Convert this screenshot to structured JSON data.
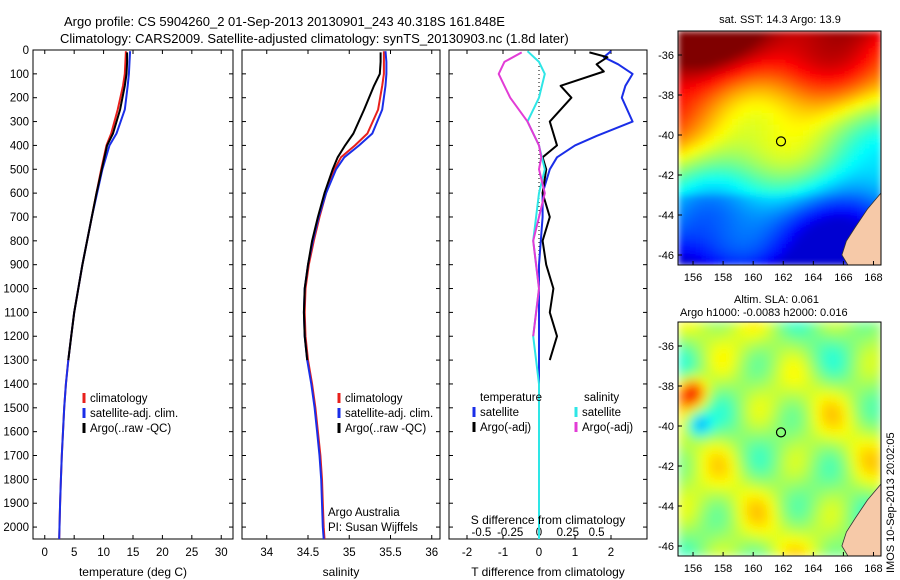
{
  "header": {
    "line1": "Argo profile: CS 5904260_2 01-Sep-2013 20130901_243 40.318S 161.848E",
    "line2": "Climatology: CARS2009. Satellite-adjusted climatology: synTS_20130903.nc (1.8d later)"
  },
  "side_label": "IMOS 10-Sep-2013 20:02:05",
  "colors": {
    "climatology": "#e8201c",
    "satellite": "#1a2ee8",
    "argo": "#000000",
    "satellite_salinity": "#2ee6e6",
    "argo_salinity": "#e23cd6",
    "land": "#f6c9a8"
  },
  "depth_axis": {
    "range": [
      0,
      2050
    ],
    "ticks": [
      0,
      100,
      200,
      300,
      400,
      500,
      600,
      700,
      800,
      900,
      1000,
      1100,
      1200,
      1300,
      1400,
      1500,
      1600,
      1700,
      1800,
      1900,
      2000
    ]
  },
  "chart_data": [
    {
      "type": "line",
      "id": "temperature-profile",
      "xlabel": "temperature (deg C)",
      "xlim": [
        -2,
        32
      ],
      "xticks": [
        0,
        5,
        10,
        15,
        20,
        25,
        30
      ],
      "ylim": [
        0,
        2050
      ],
      "y_inverted": true,
      "legend": {
        "placement": "lower-left",
        "entries": [
          "climatology",
          "satellite-adj. clim.",
          "Argo(..raw -QC)"
        ]
      },
      "series": [
        {
          "name": "climatology",
          "color": "#e8201c",
          "points": [
            [
              13.8,
              5
            ],
            [
              13.7,
              50
            ],
            [
              13.6,
              100
            ],
            [
              13.3,
              150
            ],
            [
              12.4,
              250
            ],
            [
              11.3,
              350
            ],
            [
              10.5,
              400
            ],
            [
              9.6,
              500
            ],
            [
              8.8,
              600
            ],
            [
              8.0,
              700
            ],
            [
              7.2,
              800
            ],
            [
              6.4,
              900
            ],
            [
              5.7,
              1000
            ],
            [
              5.0,
              1100
            ],
            [
              4.5,
              1200
            ],
            [
              4.0,
              1300
            ],
            [
              3.6,
              1400
            ],
            [
              3.3,
              1500
            ],
            [
              3.1,
              1600
            ],
            [
              2.9,
              1700
            ],
            [
              2.75,
              1800
            ],
            [
              2.6,
              1900
            ],
            [
              2.5,
              2000
            ],
            [
              2.45,
              2050
            ]
          ]
        },
        {
          "name": "satellite-adj. clim.",
          "color": "#1a2ee8",
          "points": [
            [
              14.5,
              5
            ],
            [
              14.4,
              50
            ],
            [
              14.3,
              100
            ],
            [
              14.1,
              150
            ],
            [
              13.6,
              250
            ],
            [
              12.2,
              350
            ],
            [
              11.0,
              400
            ],
            [
              9.8,
              500
            ],
            [
              8.9,
              600
            ],
            [
              8.0,
              700
            ],
            [
              7.2,
              800
            ],
            [
              6.4,
              900
            ],
            [
              5.7,
              1000
            ],
            [
              5.0,
              1100
            ],
            [
              4.5,
              1200
            ],
            [
              4.0,
              1300
            ],
            [
              3.6,
              1400
            ],
            [
              3.3,
              1500
            ],
            [
              3.1,
              1600
            ],
            [
              2.9,
              1700
            ],
            [
              2.75,
              1800
            ],
            [
              2.6,
              1900
            ],
            [
              2.5,
              2000
            ],
            [
              2.45,
              2050
            ]
          ]
        },
        {
          "name": "Argo(..raw -QC)",
          "color": "#000000",
          "points": [
            [
              14.0,
              10
            ],
            [
              14.0,
              50
            ],
            [
              13.9,
              100
            ],
            [
              13.6,
              150
            ],
            [
              12.8,
              250
            ],
            [
              11.6,
              350
            ],
            [
              10.6,
              400
            ],
            [
              9.7,
              500
            ],
            [
              8.8,
              600
            ],
            [
              8.0,
              700
            ],
            [
              7.2,
              800
            ],
            [
              6.4,
              900
            ],
            [
              5.7,
              1000
            ],
            [
              5.0,
              1100
            ],
            [
              4.5,
              1200
            ],
            [
              4.0,
              1300
            ]
          ]
        }
      ]
    },
    {
      "type": "line",
      "id": "salinity-profile",
      "xlabel": "salinity",
      "xlim": [
        33.7,
        36.1
      ],
      "xticks": [
        34,
        34.5,
        35,
        35.5,
        36
      ],
      "ylim": [
        0,
        2050
      ],
      "y_inverted": true,
      "legend": {
        "placement": "lower-right",
        "entries": [
          "climatology",
          "satellite-adj. clim.",
          "Argo(..raw -QC)"
        ]
      },
      "annotation": [
        "Argo Australia",
        "PI: Susan Wijffels"
      ],
      "series": [
        {
          "name": "climatology",
          "color": "#e8201c",
          "points": [
            [
              35.42,
              5
            ],
            [
              35.42,
              50
            ],
            [
              35.42,
              100
            ],
            [
              35.4,
              150
            ],
            [
              35.35,
              250
            ],
            [
              35.22,
              350
            ],
            [
              35.07,
              400
            ],
            [
              34.9,
              450
            ],
            [
              34.82,
              500
            ],
            [
              34.72,
              600
            ],
            [
              34.64,
              700
            ],
            [
              34.57,
              800
            ],
            [
              34.51,
              900
            ],
            [
              34.47,
              1000
            ],
            [
              34.46,
              1100
            ],
            [
              34.47,
              1200
            ],
            [
              34.5,
              1300
            ],
            [
              34.55,
              1400
            ],
            [
              34.59,
              1500
            ],
            [
              34.62,
              1600
            ],
            [
              34.65,
              1700
            ],
            [
              34.67,
              1800
            ],
            [
              34.68,
              1900
            ],
            [
              34.69,
              2000
            ],
            [
              34.7,
              2050
            ]
          ]
        },
        {
          "name": "satellite-adj. clim.",
          "color": "#1a2ee8",
          "points": [
            [
              35.44,
              5
            ],
            [
              35.45,
              50
            ],
            [
              35.45,
              100
            ],
            [
              35.44,
              150
            ],
            [
              35.4,
              250
            ],
            [
              35.28,
              350
            ],
            [
              35.12,
              400
            ],
            [
              34.94,
              450
            ],
            [
              34.84,
              500
            ],
            [
              34.72,
              600
            ],
            [
              34.63,
              700
            ],
            [
              34.56,
              800
            ],
            [
              34.5,
              900
            ],
            [
              34.46,
              1000
            ],
            [
              34.45,
              1100
            ],
            [
              34.46,
              1200
            ],
            [
              34.49,
              1300
            ],
            [
              34.54,
              1400
            ],
            [
              34.58,
              1500
            ],
            [
              34.61,
              1600
            ],
            [
              34.64,
              1700
            ],
            [
              34.66,
              1800
            ],
            [
              34.67,
              1900
            ],
            [
              34.68,
              2000
            ],
            [
              34.69,
              2050
            ]
          ]
        },
        {
          "name": "Argo(..raw -QC)",
          "color": "#000000",
          "points": [
            [
              35.38,
              10
            ],
            [
              35.38,
              50
            ],
            [
              35.37,
              100
            ],
            [
              35.3,
              150
            ],
            [
              35.18,
              250
            ],
            [
              35.05,
              350
            ],
            [
              34.95,
              400
            ],
            [
              34.86,
              450
            ],
            [
              34.8,
              500
            ],
            [
              34.7,
              600
            ],
            [
              34.62,
              700
            ],
            [
              34.55,
              800
            ],
            [
              34.5,
              900
            ],
            [
              34.46,
              1000
            ],
            [
              34.45,
              1100
            ],
            [
              34.46,
              1200
            ],
            [
              34.49,
              1300
            ]
          ]
        }
      ]
    },
    {
      "type": "line",
      "id": "difference-profile",
      "xlabel": "T difference from climatology",
      "xlabel_top": "S difference from climatology",
      "xlim": [
        -2.5,
        3.0
      ],
      "xticks": [
        -2,
        -1,
        0,
        1,
        2
      ],
      "xticks_secondary": [
        -0.5,
        -0.25,
        0,
        0.25,
        0.5
      ],
      "xticks_secondary_labels": [
        "-0.5",
        "-0.25",
        "0",
        "0.25",
        "0.5"
      ],
      "zero_line": true,
      "ylim": [
        0,
        2050
      ],
      "y_inverted": true,
      "legend": {
        "placement": "lower-center",
        "temperature_title": "temperature",
        "temperature_entries": [
          "satellite",
          "Argo(-adj)"
        ],
        "salinity_title": "salinity",
        "salinity_entries": [
          "satellite",
          "Argo(-adj)"
        ]
      },
      "series": [
        {
          "name": "satellite",
          "group": "temperature",
          "color": "#1a2ee8",
          "points": [
            [
              2.0,
              5
            ],
            [
              1.8,
              30
            ],
            [
              2.2,
              60
            ],
            [
              2.6,
              100
            ],
            [
              2.4,
              150
            ],
            [
              2.3,
              200
            ],
            [
              2.6,
              300
            ],
            [
              1.6,
              360
            ],
            [
              1.0,
              400
            ],
            [
              0.5,
              450
            ],
            [
              0.3,
              500
            ],
            [
              0.1,
              600
            ],
            [
              0.1,
              700
            ],
            [
              0.05,
              800
            ],
            [
              0.0,
              900
            ],
            [
              0.0,
              1000
            ],
            [
              0.0,
              1100
            ],
            [
              0.0,
              1300
            ],
            [
              0.0,
              1500
            ],
            [
              0.0,
              1700
            ],
            [
              0.0,
              1900
            ],
            [
              0.0,
              2050
            ]
          ]
        },
        {
          "name": "Argo(-adj)",
          "group": "temperature",
          "color": "#000000",
          "points": [
            [
              1.4,
              10
            ],
            [
              1.9,
              30
            ],
            [
              1.6,
              60
            ],
            [
              1.8,
              90
            ],
            [
              0.6,
              150
            ],
            [
              0.9,
              200
            ],
            [
              0.3,
              300
            ],
            [
              0.5,
              400
            ],
            [
              0.1,
              450
            ],
            [
              0.2,
              500
            ],
            [
              0.1,
              600
            ],
            [
              0.3,
              700
            ],
            [
              0.1,
              800
            ],
            [
              0.2,
              900
            ],
            [
              0.4,
              1000
            ],
            [
              0.3,
              1100
            ],
            [
              0.5,
              1200
            ],
            [
              0.3,
              1300
            ]
          ]
        },
        {
          "name": "satellite",
          "group": "salinity",
          "color": "#2ee6e6",
          "points": [
            [
              -0.1,
              5
            ],
            [
              0.0,
              50
            ],
            [
              0.05,
              100
            ],
            [
              0.0,
              200
            ],
            [
              -0.1,
              300
            ],
            [
              0.0,
              400
            ],
            [
              0.05,
              500
            ],
            [
              0.0,
              600
            ],
            [
              -0.05,
              800
            ],
            [
              0.0,
              1000
            ],
            [
              -0.05,
              1200
            ],
            [
              0.0,
              1400
            ],
            [
              0.0,
              1600
            ],
            [
              0.0,
              1800
            ],
            [
              0.0,
              2050
            ]
          ]
        },
        {
          "name": "Argo(-adj)",
          "group": "salinity",
          "color": "#e23cd6",
          "points": [
            [
              -0.15,
              10
            ],
            [
              -0.3,
              50
            ],
            [
              -0.35,
              100
            ],
            [
              -0.3,
              150
            ],
            [
              -0.25,
              200
            ],
            [
              -0.1,
              300
            ],
            [
              0.0,
              400
            ],
            [
              0.02,
              450
            ],
            [
              0.0,
              500
            ],
            [
              0.05,
              600
            ],
            [
              0.0,
              700
            ],
            [
              -0.05,
              800
            ],
            [
              0.0,
              1000
            ],
            [
              -0.05,
              1200
            ]
          ]
        }
      ]
    },
    {
      "type": "heatmap",
      "id": "sst-map",
      "title": "sat. SST: 14.3 Argo: 13.9",
      "xlim": [
        155,
        168.5
      ],
      "ylim": [
        -46.5,
        -34.8
      ],
      "xticks": [
        156,
        158,
        160,
        162,
        164,
        166,
        168
      ],
      "yticks": [
        -36,
        -38,
        -40,
        -42,
        -44,
        -46
      ],
      "marker": {
        "lon": 161.848,
        "lat": -40.318
      }
    },
    {
      "type": "heatmap",
      "id": "sla-map",
      "title_lines": [
        "Altim. SLA: 0.061",
        "Argo h1000: -0.0083 h2000: 0.016"
      ],
      "xlim": [
        155,
        168.5
      ],
      "ylim": [
        -46.5,
        -34.8
      ],
      "xticks": [
        156,
        158,
        160,
        162,
        164,
        166,
        168
      ],
      "yticks": [
        -36,
        -38,
        -40,
        -42,
        -44,
        -46
      ],
      "marker": {
        "lon": 161.848,
        "lat": -40.318
      }
    }
  ]
}
